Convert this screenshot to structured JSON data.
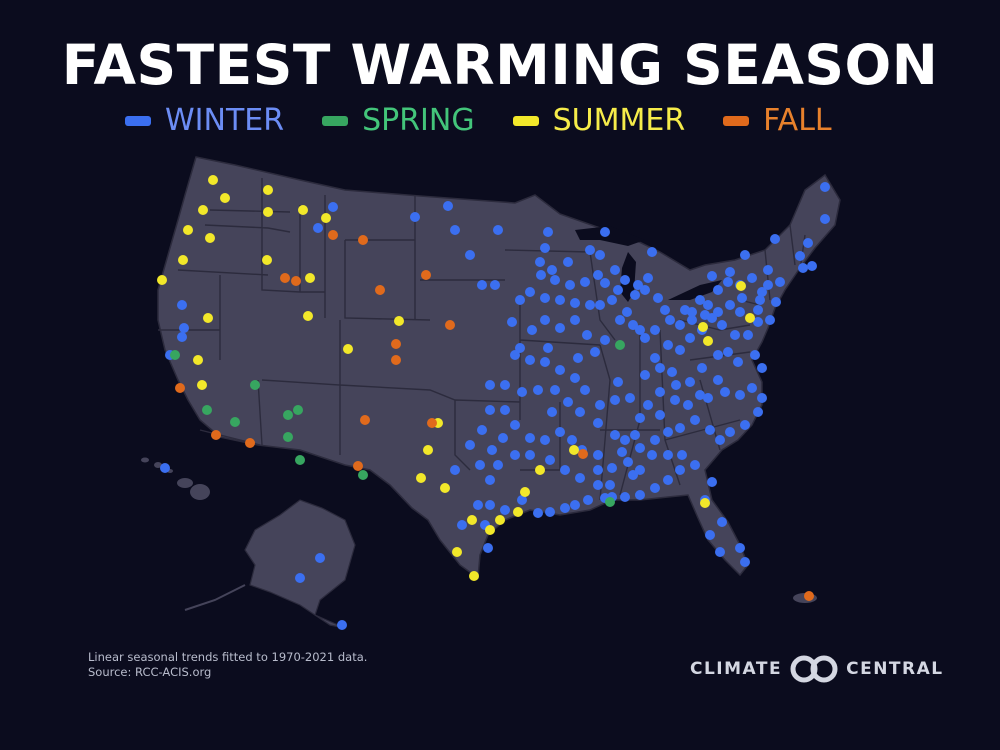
{
  "title": "FASTEST WARMING SEASON",
  "legend": [
    {
      "label": "WINTER",
      "color": "#3b6ff0"
    },
    {
      "label": "SPRING",
      "color": "#37a660"
    },
    {
      "label": "SUMMER",
      "color": "#f2e82a"
    },
    {
      "label": "FALL",
      "color": "#e06a1c"
    }
  ],
  "legend_text_colors": {
    "WINTER": "#6c8df5",
    "SPRING": "#43c57a",
    "SUMMER": "#f6ec4a",
    "FALL": "#e8812c"
  },
  "footnote": {
    "line1": "Linear seasonal trends fitted to 1970-2021 data.",
    "line2": "Source: RCC-ACIS.org"
  },
  "brand": {
    "left": "CLIMATE",
    "right": "CENTRAL"
  },
  "colors": {
    "background": "#0b0c1e",
    "land": "#45445a",
    "border": "#2c2b3d"
  }
}
